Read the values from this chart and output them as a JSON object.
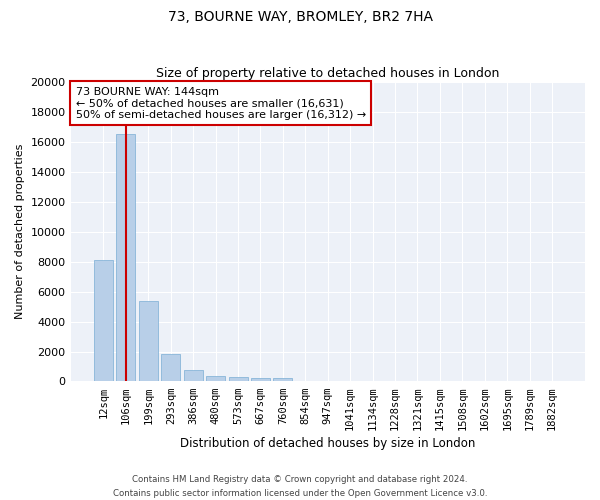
{
  "title1": "73, BOURNE WAY, BROMLEY, BR2 7HA",
  "title2": "Size of property relative to detached houses in London",
  "xlabel": "Distribution of detached houses by size in London",
  "ylabel": "Number of detached properties",
  "categories": [
    "12sqm",
    "106sqm",
    "199sqm",
    "293sqm",
    "386sqm",
    "480sqm",
    "573sqm",
    "667sqm",
    "760sqm",
    "854sqm",
    "947sqm",
    "1041sqm",
    "1134sqm",
    "1228sqm",
    "1321sqm",
    "1415sqm",
    "1508sqm",
    "1602sqm",
    "1695sqm",
    "1789sqm",
    "1882sqm"
  ],
  "values": [
    8100,
    16500,
    5400,
    1850,
    750,
    350,
    280,
    230,
    200,
    0,
    0,
    0,
    0,
    0,
    0,
    0,
    0,
    0,
    0,
    0,
    0
  ],
  "bar_color": "#b8cfe8",
  "bar_edge_color": "#7aadd4",
  "vline_color": "#cc0000",
  "vline_position": 1.0,
  "annotation_text": "73 BOURNE WAY: 144sqm\n← 50% of detached houses are smaller (16,631)\n50% of semi-detached houses are larger (16,312) →",
  "annotation_box_color": "#ffffff",
  "annotation_box_edge": "#cc0000",
  "ylim": [
    0,
    20000
  ],
  "yticks": [
    0,
    2000,
    4000,
    6000,
    8000,
    10000,
    12000,
    14000,
    16000,
    18000,
    20000
  ],
  "background_color": "#edf1f8",
  "grid_color": "#ffffff",
  "footer1": "Contains HM Land Registry data © Crown copyright and database right 2024.",
  "footer2": "Contains public sector information licensed under the Open Government Licence v3.0."
}
